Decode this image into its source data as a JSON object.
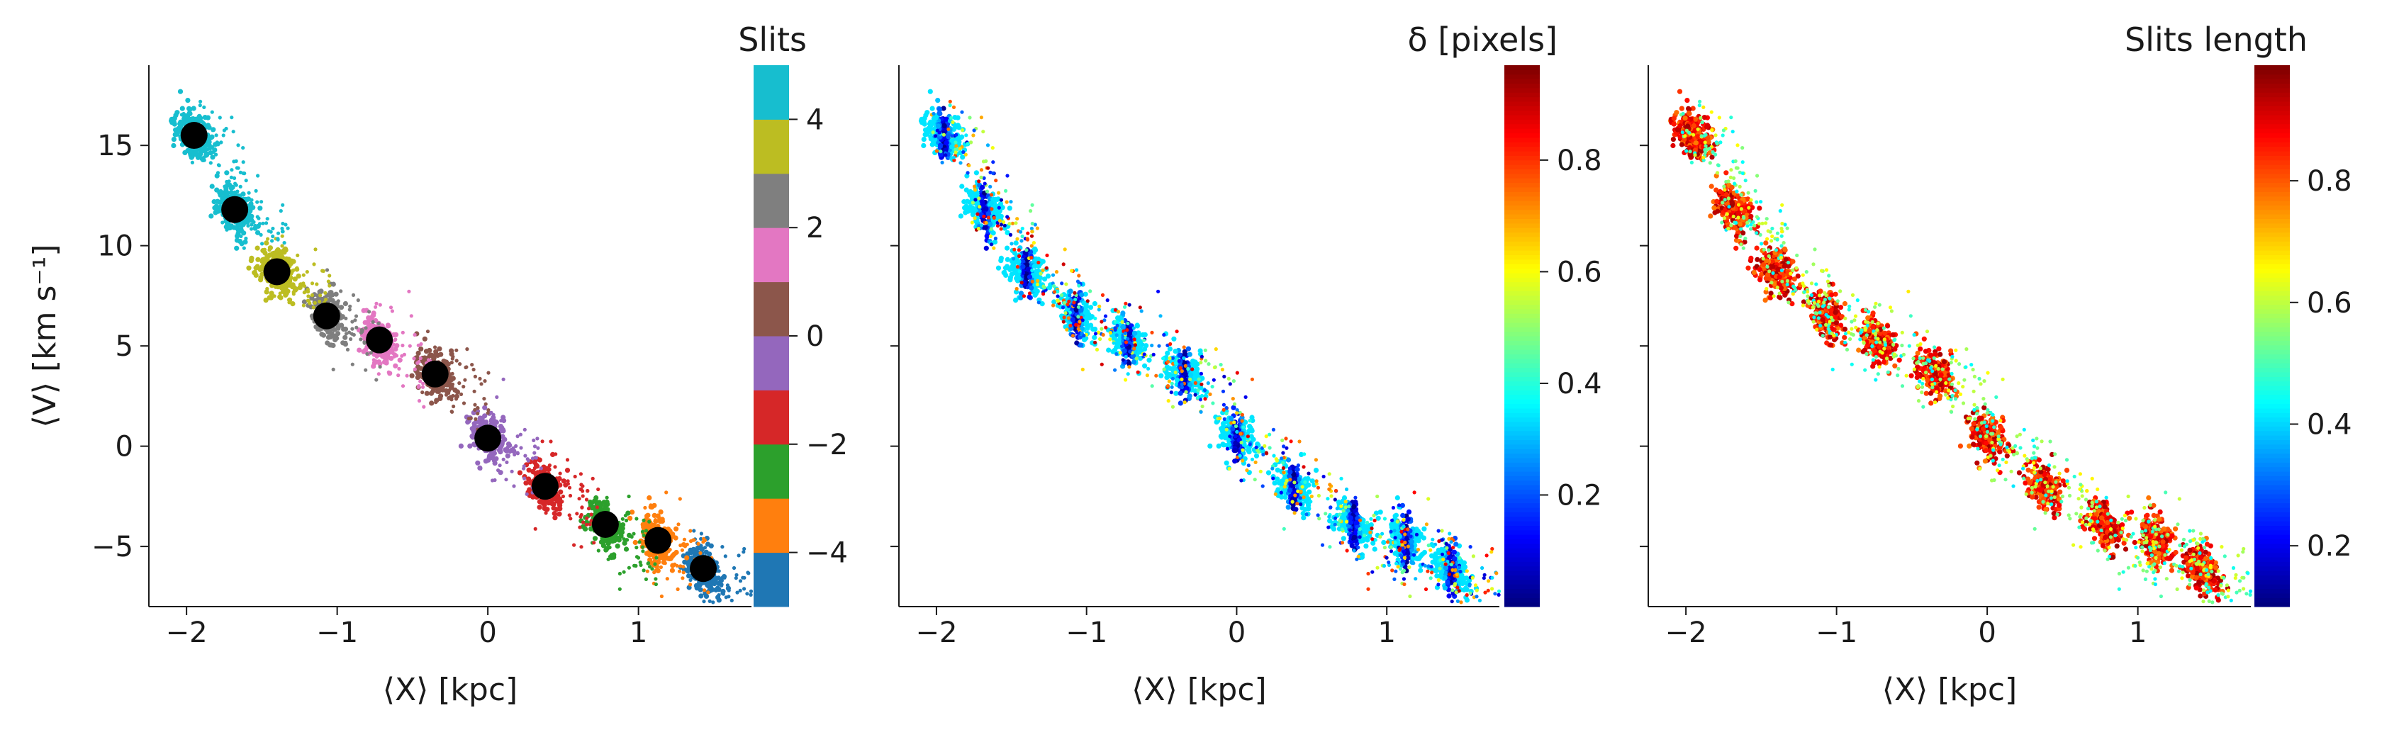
{
  "chart_data": [
    {
      "type": "scatter",
      "panel": "left",
      "xlabel": "⟨X⟩ [kpc]",
      "ylabel": "⟨V⟩ [km s⁻¹]",
      "xlim": [
        -2.25,
        1.75
      ],
      "ylim": [
        -8,
        19
      ],
      "xticks": [
        -2,
        -1,
        0,
        1
      ],
      "xtick_labels": [
        "−2",
        "−1",
        "0",
        "1"
      ],
      "yticks": [
        -5,
        0,
        5,
        10,
        15
      ],
      "ytick_labels": [
        "−5",
        "0",
        "5",
        "10",
        "15"
      ],
      "colorbar": {
        "title": "Slits",
        "type": "discrete",
        "range": [
          -5,
          5
        ],
        "ticks": [
          -4,
          -2,
          0,
          2,
          4
        ],
        "tick_labels": [
          "−4",
          "−2",
          "0",
          "2",
          "4"
        ],
        "colors": [
          "#1f77b4",
          "#ff7f0e",
          "#2ca02c",
          "#d62728",
          "#9467bd",
          "#8c564b",
          "#e377c2",
          "#7f7f7f",
          "#bcbd22",
          "#17becf"
        ]
      },
      "slit_centers": [
        {
          "slit": -4.5,
          "x": 1.43,
          "y": -6.1
        },
        {
          "slit": -3.5,
          "x": 1.13,
          "y": -4.7
        },
        {
          "slit": -2.5,
          "x": 0.78,
          "y": -3.9
        },
        {
          "slit": -1.5,
          "x": 0.38,
          "y": -2.0
        },
        {
          "slit": -0.5,
          "x": 0.0,
          "y": 0.4
        },
        {
          "slit": 0.5,
          "x": -0.35,
          "y": 3.6
        },
        {
          "slit": 1.5,
          "x": -0.72,
          "y": 5.3
        },
        {
          "slit": 2.5,
          "x": -1.07,
          "y": 6.5
        },
        {
          "slit": 3.5,
          "x": -1.4,
          "y": 8.7
        },
        {
          "slit": 4.5,
          "x": -1.68,
          "y": 11.8
        },
        {
          "slit": 4.5,
          "x": -1.95,
          "y": 15.5
        }
      ],
      "marker_color": "#000000"
    },
    {
      "type": "scatter",
      "panel": "middle",
      "xlabel": "⟨X⟩ [kpc]",
      "xlim": [
        -2.25,
        1.75
      ],
      "ylim": [
        -8,
        19
      ],
      "xticks": [
        -2,
        -1,
        0,
        1
      ],
      "xtick_labels": [
        "−2",
        "−1",
        "0",
        "1"
      ],
      "yticks": [
        -5,
        0,
        5,
        10,
        15
      ],
      "colorbar": {
        "title": "δ [pixels]",
        "colormap": "jet",
        "range": [
          0.0,
          0.97
        ],
        "ticks": [
          0.2,
          0.4,
          0.6,
          0.8
        ],
        "tick_labels": [
          "0.2",
          "0.4",
          "0.6",
          "0.8"
        ]
      }
    },
    {
      "type": "scatter",
      "panel": "right",
      "xlabel": "⟨X⟩ [kpc]",
      "xlim": [
        -2.25,
        1.75
      ],
      "ylim": [
        -8,
        19
      ],
      "xticks": [
        -2,
        -1,
        0,
        1
      ],
      "xtick_labels": [
        "−2",
        "−1",
        "0",
        "1"
      ],
      "yticks": [
        -5,
        0,
        5,
        10,
        15
      ],
      "colorbar": {
        "title": "Slits length",
        "colormap": "jet",
        "range": [
          0.1,
          0.99
        ],
        "ticks": [
          0.2,
          0.4,
          0.6,
          0.8
        ],
        "tick_labels": [
          "0.2",
          "0.4",
          "0.6",
          "0.8"
        ]
      }
    }
  ]
}
